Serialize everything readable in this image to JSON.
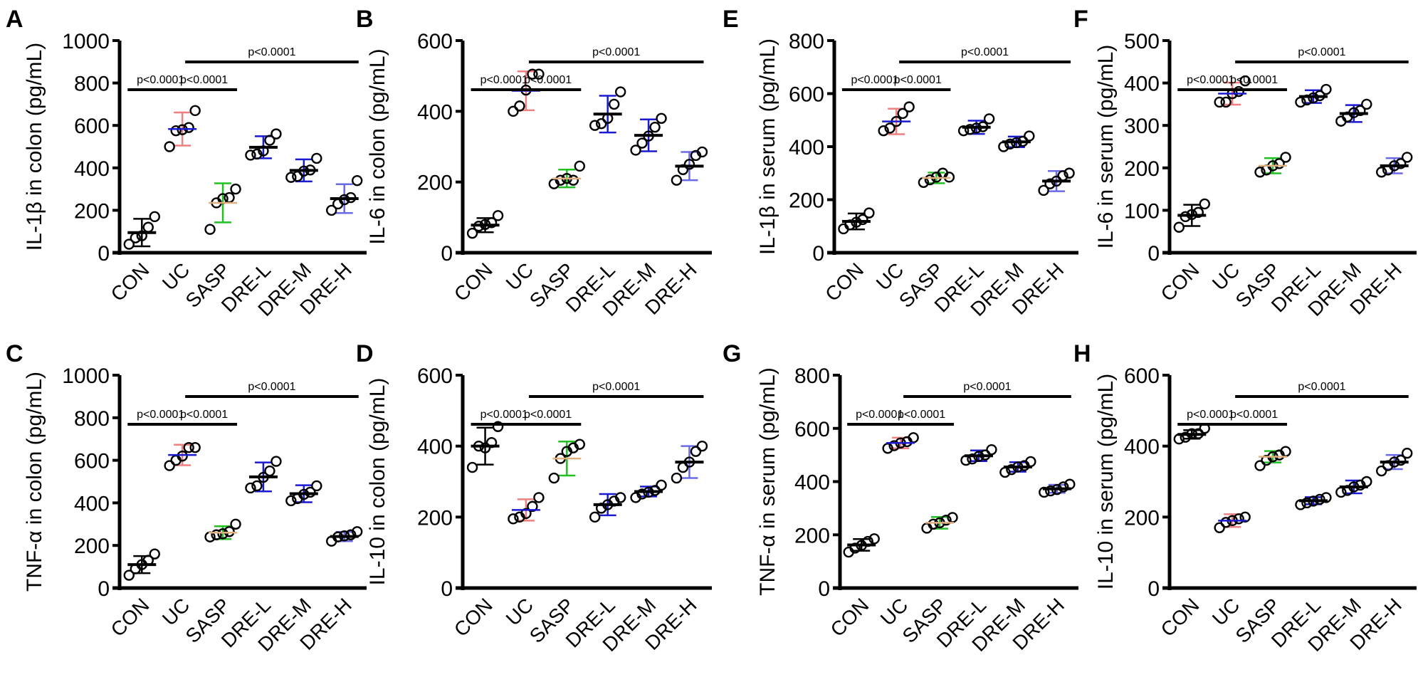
{
  "chart_data": {
    "type": "scatter",
    "categories": [
      "CON",
      "UC",
      "SASP",
      "DRE-L",
      "DRE-M",
      "DRE-H"
    ],
    "group_colors": {
      "CON": {
        "mean": "#000000",
        "error": "#000000"
      },
      "UC": {
        "mean": "#1a1ad0",
        "error": "#f08080"
      },
      "SASP": {
        "mean": "#e0b080",
        "error": "#22c022"
      },
      "DRE-L": {
        "mean": "#000000",
        "error": "#1a1ad0"
      },
      "DRE-M": {
        "mean": "#000000",
        "error": "#1a1ad0"
      },
      "DRE-H": {
        "mean": "#000000",
        "error": "#6a6ae8"
      }
    },
    "panels": [
      {
        "label": "A",
        "ylabel": "IL-1β in colon (pg/mL)",
        "ylim": [
          0,
          1000
        ],
        "yticks": [
          0,
          200,
          400,
          600,
          800,
          1000
        ],
        "groups": [
          {
            "name": "CON",
            "points": [
              40,
              70,
              80,
              120,
              170
            ],
            "mean": 95,
            "sd": 65
          },
          {
            "name": "UC",
            "points": [
              500,
              575,
              580,
              590,
              670
            ],
            "mean": 583,
            "sd": 78
          },
          {
            "name": "SASP",
            "points": [
              110,
              235,
              255,
              260,
              300
            ],
            "mean": 235,
            "sd": 92
          },
          {
            "name": "DRE-L",
            "points": [
              460,
              465,
              480,
              530,
              560
            ],
            "mean": 497,
            "sd": 52
          },
          {
            "name": "DRE-M",
            "points": [
              355,
              360,
              385,
              390,
              445
            ],
            "mean": 388,
            "sd": 52
          },
          {
            "name": "DRE-H",
            "points": [
              200,
              230,
              250,
              260,
              340
            ],
            "mean": 255,
            "sd": 68
          }
        ],
        "comparisons": [
          {
            "from": "CON",
            "to": "UC",
            "text": "p<0.0001",
            "level": 1
          },
          {
            "from": "UC",
            "to": "SASP",
            "text": "p<0.0001",
            "level": 1
          },
          {
            "from": "UC",
            "to": "DRE-H",
            "text": "p<0.0001",
            "level": 2
          }
        ]
      },
      {
        "label": "B",
        "ylabel": "IL-6 in colon (pg/mL)",
        "ylim": [
          0,
          600
        ],
        "yticks": [
          0,
          200,
          400,
          600
        ],
        "groups": [
          {
            "name": "CON",
            "points": [
              55,
              75,
              80,
              85,
              105
            ],
            "mean": 78,
            "sd": 20
          },
          {
            "name": "UC",
            "points": [
              400,
              415,
              460,
              505,
              505
            ],
            "mean": 458,
            "sd": 55
          },
          {
            "name": "SASP",
            "points": [
              195,
              205,
              210,
              205,
              245
            ],
            "mean": 210,
            "sd": 25
          },
          {
            "name": "DRE-L",
            "points": [
              360,
              365,
              380,
              420,
              455
            ],
            "mean": 392,
            "sd": 52
          },
          {
            "name": "DRE-M",
            "points": [
              290,
              310,
              330,
              355,
              380
            ],
            "mean": 332,
            "sd": 45
          },
          {
            "name": "DRE-H",
            "points": [
              205,
              235,
              250,
              275,
              285
            ],
            "mean": 245,
            "sd": 40
          }
        ],
        "comparisons": [
          {
            "from": "CON",
            "to": "UC",
            "text": "p<0.0001",
            "level": 1
          },
          {
            "from": "UC",
            "to": "SASP",
            "text": "p<0.0001",
            "level": 1
          },
          {
            "from": "UC",
            "to": "DRE-H",
            "text": "p<0.0001",
            "level": 2
          }
        ]
      },
      {
        "label": "E",
        "ylabel": "IL-1β in serum (pg/mL)",
        "ylim": [
          0,
          800
        ],
        "yticks": [
          0,
          200,
          400,
          600,
          800
        ],
        "groups": [
          {
            "name": "CON",
            "points": [
              90,
              105,
              115,
              125,
              150
            ],
            "mean": 118,
            "sd": 30
          },
          {
            "name": "UC",
            "points": [
              460,
              470,
              495,
              525,
              550
            ],
            "mean": 495,
            "sd": 48
          },
          {
            "name": "SASP",
            "points": [
              265,
              275,
              285,
              300,
              285
            ],
            "mean": 282,
            "sd": 20
          },
          {
            "name": "DRE-L",
            "points": [
              460,
              465,
              470,
              475,
              505
            ],
            "mean": 473,
            "sd": 25
          },
          {
            "name": "DRE-M",
            "points": [
              400,
              410,
              415,
              420,
              440
            ],
            "mean": 418,
            "sd": 20
          },
          {
            "name": "DRE-H",
            "points": [
              235,
              260,
              270,
              290,
              300
            ],
            "mean": 270,
            "sd": 38
          }
        ],
        "comparisons": [
          {
            "from": "CON",
            "to": "UC",
            "text": "p<0.0001",
            "level": 1
          },
          {
            "from": "UC",
            "to": "SASP",
            "text": "p<0.0001",
            "level": 1
          },
          {
            "from": "UC",
            "to": "DRE-H",
            "text": "p<0.0001",
            "level": 2
          }
        ]
      },
      {
        "label": "F",
        "ylabel": "IL-6 in serum (pg/mL)",
        "ylim": [
          0,
          500
        ],
        "yticks": [
          0,
          100,
          200,
          300,
          400,
          500
        ],
        "groups": [
          {
            "name": "CON",
            "points": [
              60,
              85,
              90,
              95,
              115
            ],
            "mean": 88,
            "sd": 25
          },
          {
            "name": "UC",
            "points": [
              355,
              355,
              375,
              380,
              405
            ],
            "mean": 375,
            "sd": 26
          },
          {
            "name": "SASP",
            "points": [
              190,
              195,
              205,
              210,
              225
            ],
            "mean": 205,
            "sd": 18
          },
          {
            "name": "DRE-L",
            "points": [
              355,
              360,
              365,
              370,
              385
            ],
            "mean": 368,
            "sd": 15
          },
          {
            "name": "DRE-M",
            "points": [
              310,
              320,
              330,
              335,
              350
            ],
            "mean": 328,
            "sd": 20
          },
          {
            "name": "DRE-H",
            "points": [
              190,
              195,
              205,
              210,
              225
            ],
            "mean": 205,
            "sd": 18
          }
        ],
        "comparisons": [
          {
            "from": "CON",
            "to": "UC",
            "text": "p<0.0001",
            "level": 1
          },
          {
            "from": "UC",
            "to": "SASP",
            "text": "p<0.0001",
            "level": 1
          },
          {
            "from": "UC",
            "to": "DRE-H",
            "text": "p<0.0001",
            "level": 2
          }
        ]
      },
      {
        "label": "C",
        "ylabel": "TNF-α in colon (pg/mL)",
        "ylim": [
          0,
          1000
        ],
        "yticks": [
          0,
          200,
          400,
          600,
          800,
          1000
        ],
        "groups": [
          {
            "name": "CON",
            "points": [
              60,
              90,
              110,
              130,
              160
            ],
            "mean": 110,
            "sd": 40
          },
          {
            "name": "UC",
            "points": [
              575,
              600,
              620,
              660,
              660
            ],
            "mean": 625,
            "sd": 48
          },
          {
            "name": "SASP",
            "points": [
              240,
              250,
              255,
              265,
              300
            ],
            "mean": 260,
            "sd": 30
          },
          {
            "name": "DRE-L",
            "points": [
              470,
              480,
              520,
              550,
              595
            ],
            "mean": 522,
            "sd": 68
          },
          {
            "name": "DRE-M",
            "points": [
              410,
              420,
              440,
              450,
              480
            ],
            "mean": 443,
            "sd": 40
          },
          {
            "name": "DRE-H",
            "points": [
              220,
              240,
              245,
              250,
              265
            ],
            "mean": 242,
            "sd": 22
          }
        ],
        "comparisons": [
          {
            "from": "CON",
            "to": "UC",
            "text": "p<0.0001",
            "level": 1
          },
          {
            "from": "UC",
            "to": "SASP",
            "text": "p<0.0001",
            "level": 1
          },
          {
            "from": "UC",
            "to": "DRE-H",
            "text": "p<0.0001",
            "level": 2
          }
        ]
      },
      {
        "label": "D",
        "ylabel": "IL-10 in colon (pg/mL)",
        "ylim": [
          0,
          600
        ],
        "yticks": [
          0,
          200,
          400,
          600
        ],
        "groups": [
          {
            "name": "CON",
            "points": [
              340,
              400,
              395,
              410,
              455
            ],
            "mean": 400,
            "sd": 52
          },
          {
            "name": "UC",
            "points": [
              195,
              200,
              210,
              230,
              255
            ],
            "mean": 220,
            "sd": 30
          },
          {
            "name": "SASP",
            "points": [
              310,
              365,
              385,
              395,
              405
            ],
            "mean": 365,
            "sd": 48
          },
          {
            "name": "DRE-L",
            "points": [
              200,
              225,
              235,
              245,
              255
            ],
            "mean": 235,
            "sd": 30
          },
          {
            "name": "DRE-M",
            "points": [
              255,
              265,
              270,
              275,
              290
            ],
            "mean": 272,
            "sd": 14
          },
          {
            "name": "DRE-H",
            "points": [
              310,
              340,
              355,
              385,
              400
            ],
            "mean": 355,
            "sd": 45
          }
        ],
        "comparisons": [
          {
            "from": "CON",
            "to": "UC",
            "text": "p<0.0001",
            "level": 1
          },
          {
            "from": "UC",
            "to": "SASP",
            "text": "p<0.0001",
            "level": 1
          },
          {
            "from": "UC",
            "to": "DRE-H",
            "text": "p<0.0001",
            "level": 2
          }
        ]
      },
      {
        "label": "G",
        "ylabel": "TNF-α in serum (pg/mL)",
        "ylim": [
          0,
          800
        ],
        "yticks": [
          0,
          200,
          400,
          600,
          800
        ],
        "groups": [
          {
            "name": "CON",
            "points": [
              135,
              150,
              160,
              175,
              185
            ],
            "mean": 162,
            "sd": 22
          },
          {
            "name": "UC",
            "points": [
              525,
              535,
              545,
              550,
              565
            ],
            "mean": 545,
            "sd": 20
          },
          {
            "name": "SASP",
            "points": [
              225,
              240,
              245,
              255,
              265
            ],
            "mean": 245,
            "sd": 22
          },
          {
            "name": "DRE-L",
            "points": [
              480,
              485,
              495,
              500,
              520
            ],
            "mean": 497,
            "sd": 20
          },
          {
            "name": "DRE-M",
            "points": [
              435,
              445,
              455,
              460,
              475
            ],
            "mean": 455,
            "sd": 18
          },
          {
            "name": "DRE-H",
            "points": [
              360,
              365,
              370,
              380,
              390
            ],
            "mean": 373,
            "sd": 15
          }
        ],
        "comparisons": [
          {
            "from": "CON",
            "to": "UC",
            "text": "p<0.0001",
            "level": 1
          },
          {
            "from": "UC",
            "to": "SASP",
            "text": "p<0.0001",
            "level": 1
          },
          {
            "from": "UC",
            "to": "DRE-H",
            "text": "p<0.0001",
            "level": 2
          }
        ]
      },
      {
        "label": "H",
        "ylabel": "IL-10 in serum (pg/mL)",
        "ylim": [
          0,
          600
        ],
        "yticks": [
          0,
          200,
          400,
          600
        ],
        "groups": [
          {
            "name": "CON",
            "points": [
              420,
              425,
              435,
              435,
              450
            ],
            "mean": 433,
            "sd": 12
          },
          {
            "name": "UC",
            "points": [
              170,
              185,
              190,
              195,
              200
            ],
            "mean": 190,
            "sd": 18
          },
          {
            "name": "SASP",
            "points": [
              345,
              360,
              370,
              375,
              385
            ],
            "mean": 370,
            "sd": 16
          },
          {
            "name": "DRE-L",
            "points": [
              235,
              240,
              245,
              250,
              255
            ],
            "mean": 246,
            "sd": 10
          },
          {
            "name": "DRE-M",
            "points": [
              270,
              275,
              285,
              290,
              300
            ],
            "mean": 285,
            "sd": 18
          },
          {
            "name": "DRE-H",
            "points": [
              330,
              345,
              355,
              360,
              380
            ],
            "mean": 355,
            "sd": 20
          }
        ],
        "comparisons": [
          {
            "from": "CON",
            "to": "UC",
            "text": "p<0.0001",
            "level": 1
          },
          {
            "from": "UC",
            "to": "SASP",
            "text": "p<0.0001",
            "level": 1
          },
          {
            "from": "UC",
            "to": "DRE-H",
            "text": "p<0.0001",
            "level": 2
          }
        ]
      }
    ]
  }
}
